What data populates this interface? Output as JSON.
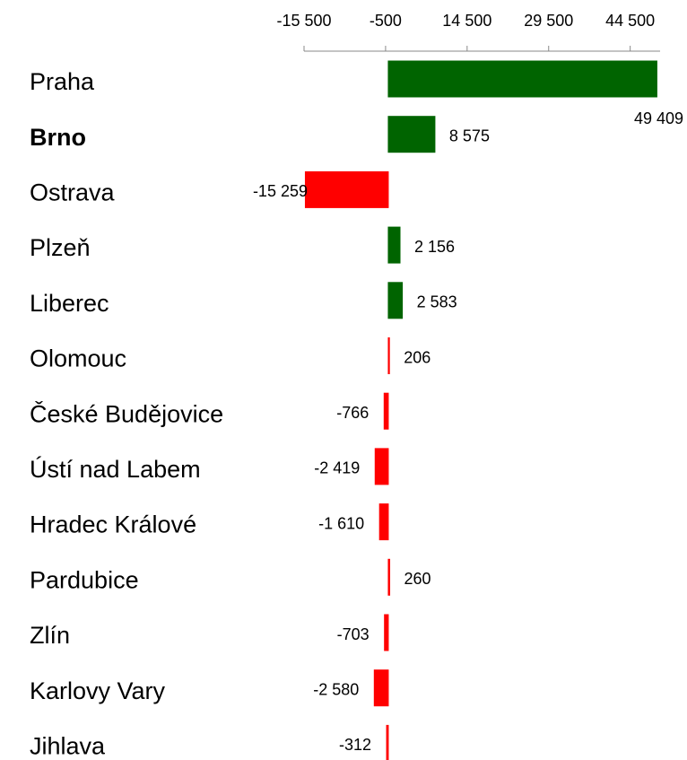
{
  "chart_data": {
    "type": "barh",
    "categories": [
      "Praha",
      "Brno",
      "Ostrava",
      "Plzeň",
      "Liberec",
      "Olomouc",
      "České Budějovice",
      "Ústí nad Labem",
      "Hradec Králové",
      "Pardubice",
      "Zlín",
      "Karlovy Vary",
      "Jihlava"
    ],
    "values": [
      49409,
      8575,
      -15259,
      2156,
      2583,
      206,
      -766,
      -2419,
      -1610,
      260,
      -703,
      -2580,
      -312
    ],
    "value_labels": [
      "49 409",
      "8 575",
      "-15 259",
      "2 156",
      "2 583",
      "206",
      "-766",
      "-2 419",
      "-1 610",
      "260",
      "-703",
      "-2 580",
      "-312"
    ],
    "colors": [
      "#006400",
      "#006400",
      "#ff0000",
      "#006400",
      "#006400",
      "#ff0000",
      "#ff0000",
      "#ff0000",
      "#ff0000",
      "#ff0000",
      "#ff0000",
      "#ff0000",
      "#ff0000"
    ],
    "bold_category_index": 1,
    "xlim": [
      -15500,
      50000
    ],
    "xticks": [
      {
        "value": -15500,
        "label": "-15 500"
      },
      -500,
      {
        "value": 14500,
        "label": "14 500"
      },
      {
        "value": 29500,
        "label": "29 500"
      },
      {
        "value": 44500,
        "label": "44 500"
      }
    ],
    "x_axis_position": "top"
  }
}
